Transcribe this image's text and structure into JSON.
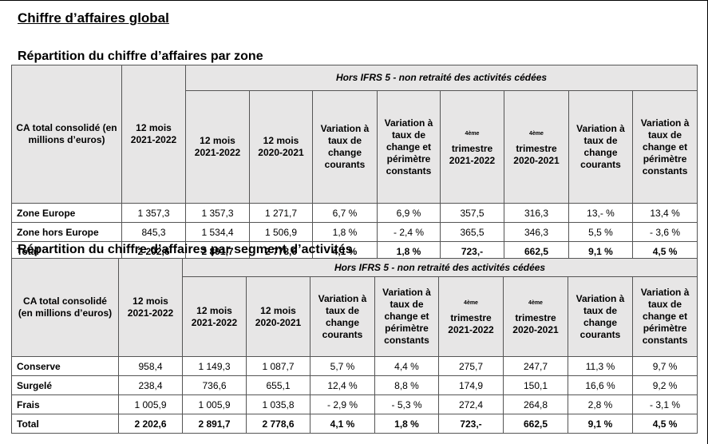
{
  "page_title": "Chiffre d’affaires global",
  "sections": [
    {
      "title": "Répartition du chiffre d’affaires par zone",
      "band_label": "Hors IFRS 5 - non retraité des activités cédées",
      "headers": {
        "first": "CA total consolidé (en millions d’euros)",
        "c1": "12 mois 2021-2022",
        "c2": "12 mois 2021-2022",
        "c3": "12 mois 2020-2021",
        "c4": "Variation à taux de change courants",
        "c5": "Variation à taux de change et périmètre constants",
        "c6_sup": "4ème",
        "c6": "trimestre 2021-2022",
        "c7_sup": "4ème",
        "c7": "trimestre 2020-2021",
        "c8": "Variation à taux de change courants",
        "c9": "Variation à taux de change et périmètre constants"
      },
      "rows": [
        {
          "label": "Zone Europe",
          "values": [
            "1 357,3",
            "1 357,3",
            "1 271,7",
            "6,7 %",
            "6,9 %",
            "357,5",
            "316,3",
            "13,- %",
            "13,4 %"
          ]
        },
        {
          "label": "Zone hors Europe",
          "values": [
            "845,3",
            "1 534,4",
            "1 506,9",
            "1,8 %",
            "- 2,4 %",
            "365,5",
            "346,3",
            "5,5 %",
            "- 3,6 %"
          ]
        }
      ],
      "total": {
        "label": "Total",
        "values": [
          "2 202,6",
          "2 891,7",
          "2 778,6",
          "4,1 %",
          "1,8 %",
          "723,-",
          "662,5",
          "9,1 %",
          "4,5 %"
        ]
      }
    },
    {
      "title": "Répartition du chiffre d’affaires par segment d’activités",
      "band_label": "Hors IFRS 5 - non retraité des activités cédées",
      "headers": {
        "first": "CA total consolidé (en millions d’euros)",
        "c1": "12 mois 2021-2022",
        "c2": "12 mois 2021-2022",
        "c3": "12 mois 2020-2021",
        "c4": "Variation à taux de change courants",
        "c5": "Variation à taux de change et périmètre constants",
        "c6_sup": "4ème",
        "c6": "trimestre 2021-2022",
        "c7_sup": "4ème",
        "c7": "trimestre 2020-2021",
        "c8": "Variation à taux de change courants",
        "c9": "Variation à taux de change et périmètre constants"
      },
      "rows": [
        {
          "label": "Conserve",
          "values": [
            "958,4",
            "1 149,3",
            "1 087,7",
            "5,7 %",
            "4,4 %",
            "275,7",
            "247,7",
            "11,3 %",
            "9,7 %"
          ]
        },
        {
          "label": "Surgelé",
          "values": [
            "238,4",
            "736,6",
            "655,1",
            "12,4 %",
            "8,8 %",
            "174,9",
            "150,1",
            "16,6 %",
            "9,2 %"
          ]
        },
        {
          "label": "Frais",
          "values": [
            "1 005,9",
            "1 005,9",
            "1 035,8",
            "- 2,9 %",
            "- 5,3 %",
            "272,4",
            "264,8",
            "2,8 %",
            "- 3,1 %"
          ]
        }
      ],
      "total": {
        "label": "Total",
        "values": [
          "2 202,6",
          "2 891,7",
          "2 778,6",
          "4,1 %",
          "1,8 %",
          "723,-",
          "662,5",
          "9,1 %",
          "4,5 %"
        ]
      }
    }
  ]
}
